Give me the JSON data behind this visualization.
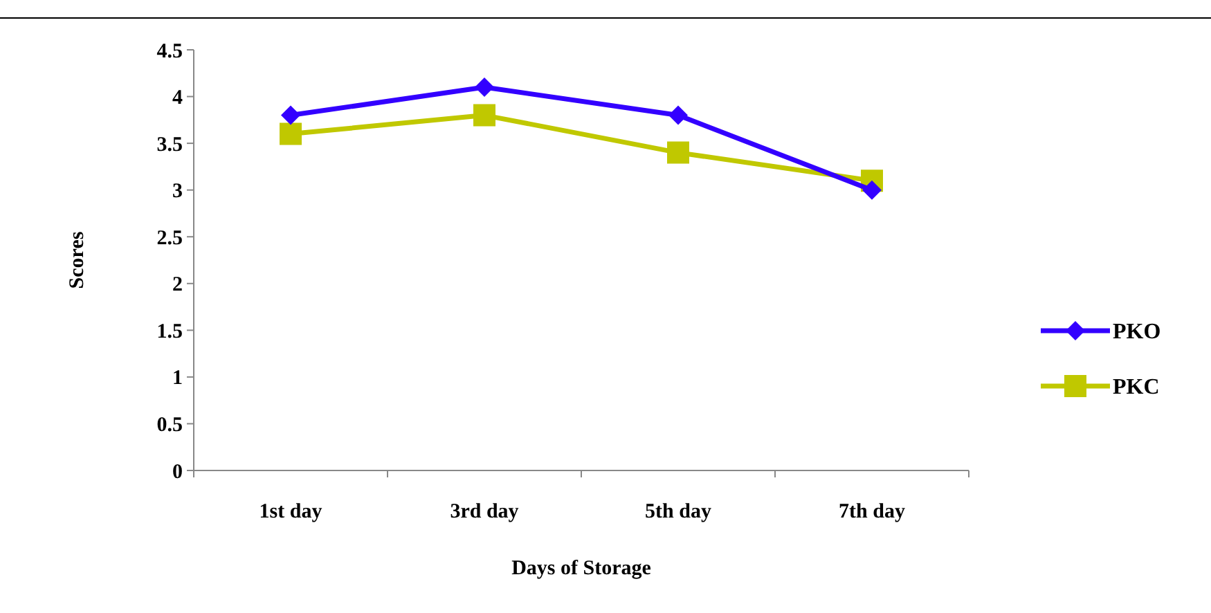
{
  "chart_data": {
    "type": "line",
    "xlabel": "Days of Storage",
    "ylabel": "Scores",
    "categories": [
      "1st day",
      "3rd day",
      "5th day",
      "7th day"
    ],
    "series": [
      {
        "name": "PKO",
        "color": "#3300ff",
        "marker": "diamond",
        "values": [
          3.8,
          4.1,
          3.8,
          3.0
        ]
      },
      {
        "name": "PKC",
        "color": "#c0c800",
        "marker": "square",
        "values": [
          3.6,
          3.8,
          3.4,
          3.1
        ]
      }
    ],
    "ylim": [
      0,
      4.5
    ],
    "yticks": [
      0,
      {
        "value": 0.5,
        "label": "0.5"
      },
      1,
      {
        "value": 1.5,
        "label": "1.5"
      },
      2,
      {
        "value": 2.5,
        "label": "2.5"
      },
      3,
      {
        "value": 3.5,
        "label": "3.5"
      },
      4,
      {
        "value": 4.5,
        "label": "4.5"
      }
    ],
    "grid": false,
    "legend": "right"
  }
}
